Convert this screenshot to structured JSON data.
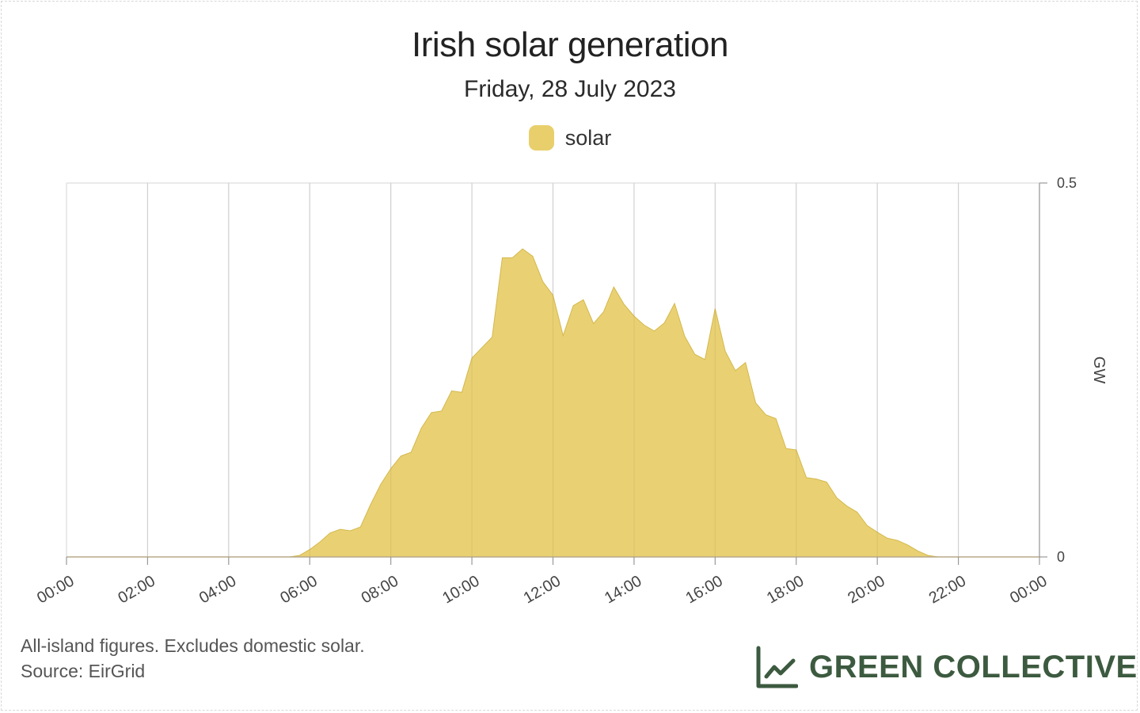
{
  "colors": {
    "solar_fill": "#e8cf6b",
    "solar_line": "#d4b84c",
    "grid": "#dddddd",
    "axis": "#999999",
    "brand": "#3c5a3f"
  },
  "footer": {
    "note": "All-island figures. Excludes domestic solar.",
    "source": "Source: EirGrid",
    "brand_name": "GREEN COLLECTIVE",
    "brand_icon": "line-chart-icon"
  },
  "chart_data": {
    "type": "area",
    "title": "Irish solar generation",
    "subtitle": "Friday, 28 July 2023",
    "legend": [
      "solar"
    ],
    "legend_position": "top-center",
    "grid": true,
    "x_tick_labels": [
      "00:00",
      "02:00",
      "04:00",
      "06:00",
      "08:00",
      "10:00",
      "12:00",
      "14:00",
      "16:00",
      "18:00",
      "20:00",
      "22:00",
      "00:00"
    ],
    "xlim": [
      "00:00",
      "24:00"
    ],
    "ylabel": "GW",
    "y_axis_side": "right",
    "y_tick_labels": [
      "0",
      "0.5"
    ],
    "ylim": [
      0,
      0.5
    ],
    "series": [
      {
        "name": "solar",
        "x": [
          "00:00",
          "05:30",
          "05:45",
          "06:00",
          "06:15",
          "06:30",
          "06:45",
          "07:00",
          "07:15",
          "07:30",
          "07:45",
          "08:00",
          "08:15",
          "08:30",
          "08:45",
          "09:00",
          "09:15",
          "09:30",
          "09:45",
          "10:00",
          "10:15",
          "10:30",
          "10:45",
          "11:00",
          "11:15",
          "11:30",
          "11:45",
          "12:00",
          "12:15",
          "12:30",
          "12:45",
          "13:00",
          "13:15",
          "13:30",
          "13:45",
          "14:00",
          "14:15",
          "14:30",
          "14:45",
          "15:00",
          "15:15",
          "15:30",
          "15:45",
          "16:00",
          "16:15",
          "16:30",
          "16:45",
          "17:00",
          "17:15",
          "17:30",
          "17:45",
          "18:00",
          "18:15",
          "18:30",
          "18:45",
          "19:00",
          "19:15",
          "19:30",
          "19:45",
          "20:00",
          "20:15",
          "20:30",
          "20:45",
          "21:00",
          "21:15",
          "21:30",
          "24:00"
        ],
        "values": [
          0,
          0,
          0.002,
          0.01,
          0.02,
          0.032,
          0.037,
          0.035,
          0.04,
          0.07,
          0.097,
          0.118,
          0.135,
          0.14,
          0.172,
          0.193,
          0.195,
          0.222,
          0.22,
          0.266,
          0.28,
          0.294,
          0.4,
          0.4,
          0.412,
          0.402,
          0.368,
          0.35,
          0.296,
          0.336,
          0.344,
          0.312,
          0.328,
          0.361,
          0.338,
          0.322,
          0.31,
          0.302,
          0.313,
          0.339,
          0.295,
          0.271,
          0.264,
          0.332,
          0.275,
          0.249,
          0.26,
          0.206,
          0.19,
          0.185,
          0.145,
          0.143,
          0.106,
          0.104,
          0.1,
          0.079,
          0.068,
          0.06,
          0.042,
          0.033,
          0.025,
          0.022,
          0.016,
          0.008,
          0.002,
          0,
          0
        ]
      }
    ]
  }
}
